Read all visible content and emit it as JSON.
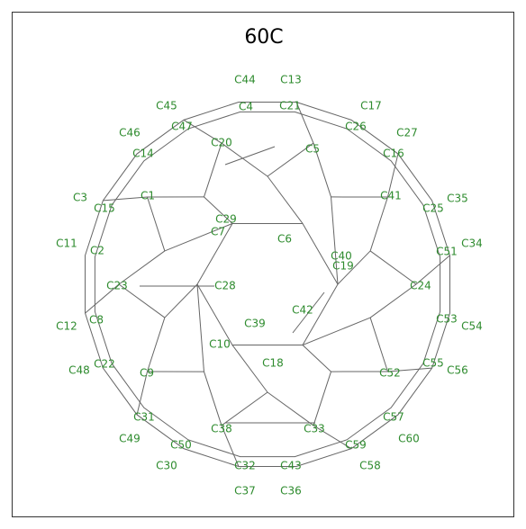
{
  "title": "60C",
  "atoms": [
    "C44",
    "C13",
    "C45",
    "C4",
    "C21",
    "C17",
    "C47",
    "C26",
    "C46",
    "C27",
    "C20",
    "C5",
    "C14",
    "C16",
    "C41",
    "C3",
    "C15",
    "C35",
    "C25",
    "C1",
    "C29",
    "C7",
    "C6",
    "C11",
    "C2",
    "C51",
    "C34",
    "C40",
    "C19",
    "C23",
    "C28",
    "C24",
    "C42",
    "C12",
    "C8",
    "C53",
    "C54",
    "C39",
    "C10",
    "C18",
    "C48",
    "C22",
    "C9",
    "C52",
    "C55",
    "C56",
    "C57",
    "C31",
    "C38",
    "C33",
    "C49",
    "C60",
    "C50",
    "C59",
    "C30",
    "C32",
    "C43",
    "C58",
    "C37",
    "C36"
  ]
}
